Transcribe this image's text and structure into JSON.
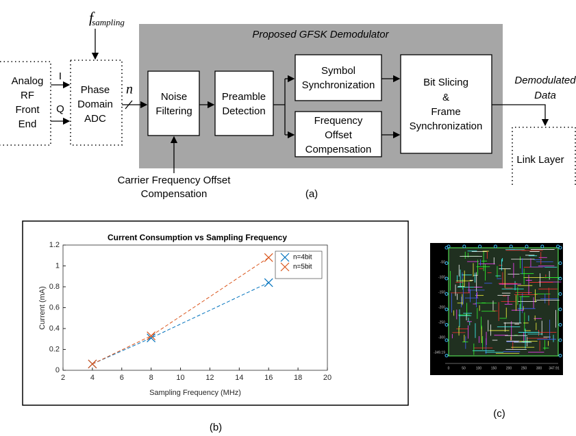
{
  "diagram": {
    "title": "Proposed GFSK Demodulator",
    "sampling_label": {
      "symbol": "f",
      "subscript": "sampling"
    },
    "bus_label": "n",
    "edge_labels": [
      "I",
      "Q"
    ],
    "nodes": [
      {
        "lines": [
          "Analog",
          "RF",
          "Front",
          "End"
        ]
      },
      {
        "lines": [
          "Phase",
          "Domain",
          "ADC"
        ]
      },
      {
        "lines": [
          "Noise",
          "Filtering"
        ]
      },
      {
        "lines": [
          "Preamble",
          "Detection"
        ]
      },
      {
        "lines": [
          "Symbol",
          "Synchronization"
        ]
      },
      {
        "lines": [
          "Frequency",
          "Offset",
          "Compensation"
        ]
      },
      {
        "lines": [
          "Bit Slicing",
          "&",
          "Frame",
          "Synchronization"
        ]
      },
      {
        "lines": [
          "Link Layer"
        ]
      }
    ],
    "output_label": [
      "Demodulated",
      "Data"
    ],
    "input_label": [
      "Carrier Frequency Offset",
      "Compensation"
    ]
  },
  "chart_data": {
    "type": "line",
    "title": "Current Consumption vs Sampling Frequency",
    "x_label": "Sampling Frequency (MHz)",
    "y_label": "Current (mA)",
    "x": [
      4,
      8,
      16
    ],
    "series": [
      {
        "name": "n=4bit",
        "color": "#0072bd",
        "values": [
          0.06,
          0.31,
          0.84
        ]
      },
      {
        "name": "n=5bit",
        "color": "#d95319",
        "values": [
          0.06,
          0.33,
          1.08
        ]
      }
    ],
    "xlim": [
      2,
      20
    ],
    "xticks": [
      2,
      4,
      6,
      8,
      10,
      12,
      14,
      16,
      18,
      20
    ],
    "ylim": [
      0,
      1.2
    ],
    "yticks": [
      0,
      0.2,
      0.4,
      0.6,
      0.8,
      1,
      1.2
    ],
    "grid": false,
    "legend": "upper right"
  },
  "layout_image": {
    "yticks": [
      "-50",
      "-100",
      "-150",
      "-200",
      "-250",
      "-300",
      "-349.19"
    ],
    "xticks": [
      "0",
      "50",
      "100",
      "150",
      "200",
      "250",
      "300",
      "347.91"
    ]
  },
  "captions": [
    "(a)",
    "(b)",
    "(c)"
  ]
}
